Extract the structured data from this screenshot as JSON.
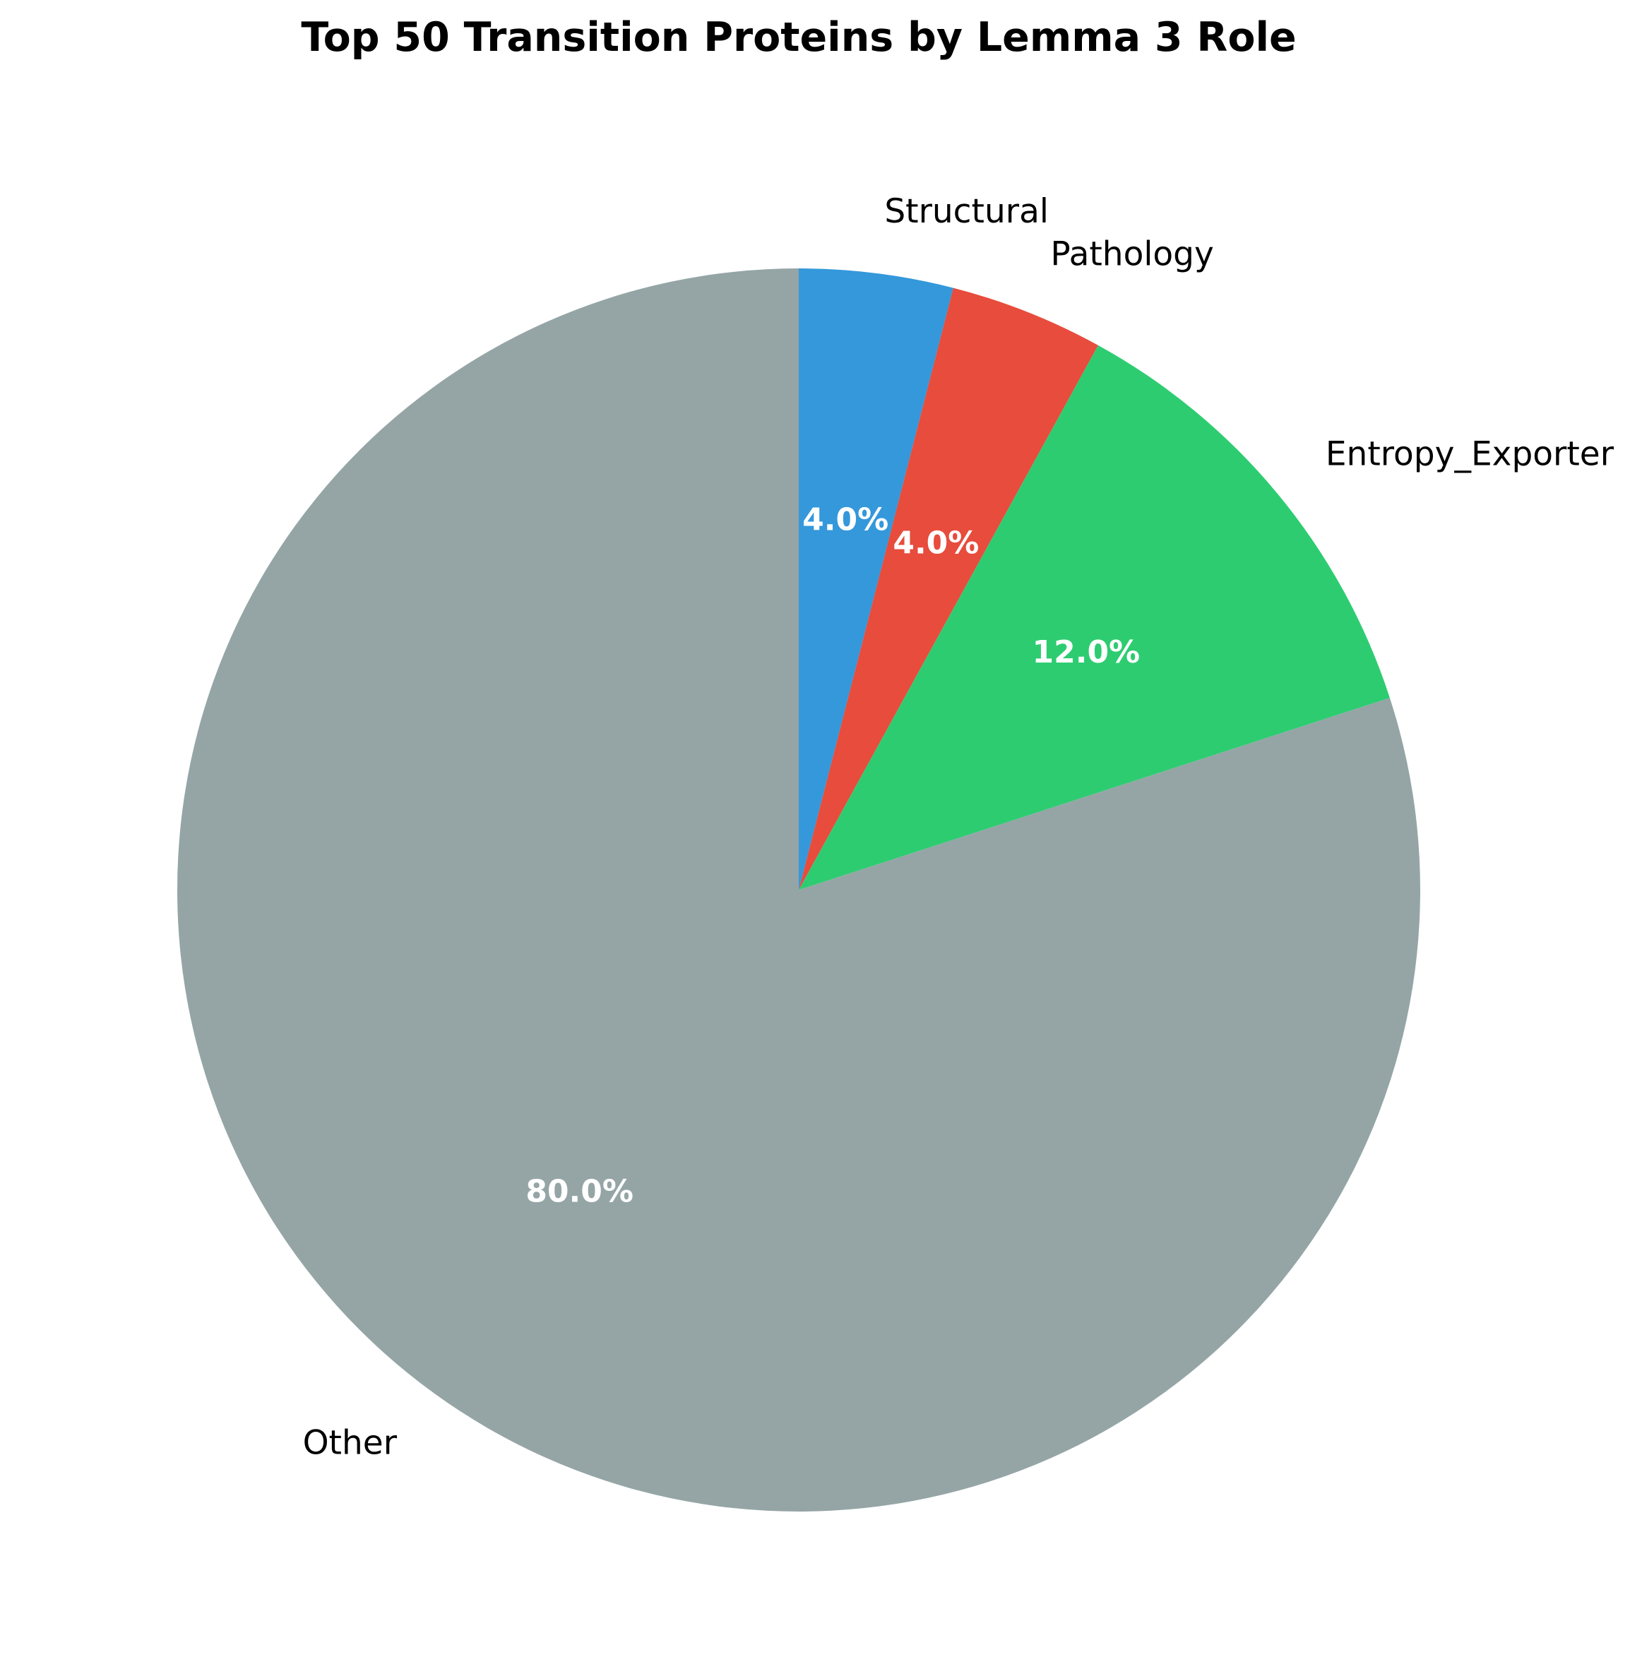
{
  "chart_data": {
    "type": "pie",
    "title": "Top 50 Transition Proteins by Lemma 3 Role",
    "start_angle_deg": 90,
    "direction": "clockwise",
    "slices": [
      {
        "label": "Structural",
        "value": 4.0,
        "pct_label": "4.0%",
        "color": "#3498db"
      },
      {
        "label": "Pathology",
        "value": 4.0,
        "pct_label": "4.0%",
        "color": "#e74c3c"
      },
      {
        "label": "Entropy_Exporter",
        "value": 12.0,
        "pct_label": "12.0%",
        "color": "#2ecc71"
      },
      {
        "label": "Other",
        "value": 80.0,
        "pct_label": "80.0%",
        "color": "#95a5a6"
      }
    ]
  }
}
